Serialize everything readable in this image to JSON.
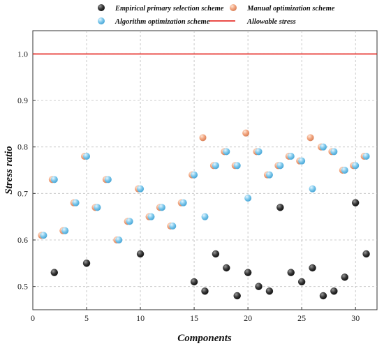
{
  "chart_data": {
    "type": "scatter",
    "title": "",
    "xlabel": "Components",
    "ylabel": "Stress ratio",
    "xlim": [
      0,
      32
    ],
    "ylim": [
      0.45,
      1.05
    ],
    "xticks": [
      0,
      5,
      10,
      15,
      20,
      25,
      30
    ],
    "yticks": [
      0.5,
      0.6,
      0.7,
      0.8,
      0.9,
      1.0
    ],
    "ytick_labels": [
      "0.5",
      "0.6",
      "0.7",
      "0.8",
      "0.9",
      "1.0"
    ],
    "grid": true,
    "legend_position": "top",
    "allowable_stress": {
      "name": "Allowable stress",
      "value": 1.0,
      "color": "#e3120b"
    },
    "series": [
      {
        "name": "Empirical primary selection scheme",
        "color": "#3a3a3a",
        "x": [
          2,
          5,
          10,
          15,
          16,
          17,
          18,
          19,
          20,
          21,
          22,
          23,
          24,
          25,
          26,
          27,
          28,
          29,
          30,
          31
        ],
        "y": [
          0.53,
          0.55,
          0.57,
          0.51,
          0.49,
          0.57,
          0.54,
          0.48,
          0.53,
          0.5,
          0.49,
          0.67,
          0.53,
          0.51,
          0.54,
          0.48,
          0.49,
          0.52,
          0.68,
          0.57
        ]
      },
      {
        "name": "Manual optimization scheme",
        "color": "#f2a57f",
        "x": [
          1,
          2,
          3,
          4,
          5,
          6,
          7,
          8,
          9,
          10,
          11,
          12,
          13,
          14,
          15,
          16,
          17,
          18,
          19,
          20,
          21,
          22,
          23,
          24,
          25,
          26,
          27,
          28,
          29,
          30,
          31
        ],
        "y": [
          0.61,
          0.73,
          0.62,
          0.68,
          0.78,
          0.67,
          0.73,
          0.6,
          0.64,
          0.71,
          0.65,
          0.67,
          0.63,
          0.68,
          0.74,
          0.82,
          0.76,
          0.79,
          0.76,
          0.83,
          0.79,
          0.74,
          0.76,
          0.78,
          0.77,
          0.82,
          0.8,
          0.79,
          0.75,
          0.76,
          0.78
        ]
      },
      {
        "name": "Algorithm optimization scheme",
        "color": "#7cc8ec",
        "x": [
          1,
          2,
          3,
          4,
          5,
          6,
          7,
          8,
          9,
          10,
          11,
          12,
          13,
          14,
          15,
          16,
          17,
          18,
          19,
          20,
          21,
          22,
          23,
          24,
          25,
          26,
          27,
          28,
          29,
          30,
          31
        ],
        "y": [
          0.61,
          0.73,
          0.62,
          0.68,
          0.78,
          0.67,
          0.73,
          0.6,
          0.64,
          0.71,
          0.65,
          0.67,
          0.63,
          0.68,
          0.74,
          0.65,
          0.76,
          0.79,
          0.76,
          0.69,
          0.79,
          0.74,
          0.76,
          0.78,
          0.77,
          0.71,
          0.8,
          0.79,
          0.75,
          0.76,
          0.78
        ]
      }
    ]
  },
  "legend": {
    "items": [
      {
        "label": "Empirical primary selection scheme",
        "icon": "dark-sphere-icon"
      },
      {
        "label": "Manual optimization scheme",
        "icon": "orange-sphere-icon"
      },
      {
        "label": "Algorithm optimization scheme",
        "icon": "blue-sphere-icon"
      },
      {
        "label": "Allowable stress",
        "icon": "red-line-icon"
      }
    ]
  }
}
